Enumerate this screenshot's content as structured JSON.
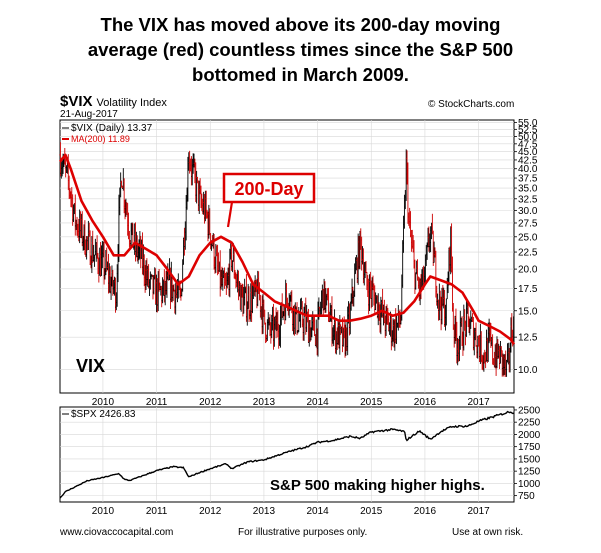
{
  "headline_lines": [
    "The VIX has moved above its 200-day moving",
    "average (red) countless times since the S&P 500",
    "bottomed in March 2009."
  ],
  "symbol": "$VIX",
  "symbol_desc": "Volatility Index",
  "credit": "© StockCharts.com",
  "chart_date": "21-Aug-2017",
  "colors": {
    "price": "#000000",
    "ma": "#dd0000",
    "down_bar": "#cc0000",
    "grid": "#d8d8d8",
    "callout": "#dd0000"
  },
  "chart_data": [
    {
      "type": "line",
      "legend": [
        "$VIX (Daily) 13.37",
        "MA(200) 11.89"
      ],
      "annotations": [
        "200-Day",
        "VIX"
      ],
      "x_tick_labels": [
        "2010",
        "2011",
        "2012",
        "2013",
        "2014",
        "2015",
        "2016",
        "2017"
      ],
      "y_tick_labels": [
        "10.0",
        "12.5",
        "15.0",
        "17.5",
        "20.0",
        "22.5",
        "25.0",
        "27.5",
        "30.0",
        "32.5",
        "35.0",
        "37.5",
        "40.0",
        "42.5",
        "45.0",
        "47.5",
        "50.0",
        "52.5",
        "55.0"
      ],
      "y_scale": "log",
      "ylim": [
        8.5,
        56
      ],
      "xlim": [
        2009.2,
        2017.66
      ],
      "grid": true,
      "series": [
        {
          "name": "$VIX (Daily)",
          "x": [
            2009.2,
            2009.28,
            2009.38,
            2009.48,
            2009.58,
            2009.7,
            2009.85,
            2009.95,
            2010.05,
            2010.15,
            2010.25,
            2010.35,
            2010.4,
            2010.5,
            2010.6,
            2010.7,
            2010.85,
            2011.0,
            2011.15,
            2011.25,
            2011.35,
            2011.45,
            2011.55,
            2011.6,
            2011.65,
            2011.75,
            2011.82,
            2011.9,
            2012.0,
            2012.1,
            2012.2,
            2012.3,
            2012.4,
            2012.5,
            2012.6,
            2012.75,
            2012.9,
            2013.0,
            2013.1,
            2013.2,
            2013.3,
            2013.45,
            2013.6,
            2013.75,
            2013.9,
            2014.0,
            2014.1,
            2014.2,
            2014.3,
            2014.5,
            2014.6,
            2014.8,
            2014.9,
            2015.0,
            2015.1,
            2015.25,
            2015.4,
            2015.55,
            2015.62,
            2015.65,
            2015.7,
            2015.8,
            2015.9,
            2016.0,
            2016.1,
            2016.25,
            2016.4,
            2016.48,
            2016.52,
            2016.6,
            2016.8,
            2016.9,
            2017.0,
            2017.1,
            2017.2,
            2017.28,
            2017.4,
            2017.5,
            2017.55,
            2017.62
          ],
          "values": [
            44,
            40,
            35,
            28,
            26,
            24,
            22,
            21,
            20,
            18,
            17,
            40,
            33,
            26,
            23,
            22,
            18,
            17,
            17,
            18,
            17,
            16,
            31,
            45,
            40,
            35,
            31,
            30,
            26,
            21,
            18,
            17,
            22,
            18,
            16,
            16,
            17,
            14,
            13,
            13,
            14,
            17,
            14,
            14,
            13,
            13,
            17,
            15,
            13,
            12,
            14,
            24,
            18,
            17,
            16,
            14,
            13,
            14,
            29,
            41,
            27,
            20,
            17,
            19,
            26,
            16,
            15,
            25,
            14,
            12,
            14,
            13,
            12,
            11,
            12,
            11,
            11,
            10,
            10,
            13.4
          ]
        },
        {
          "name": "MA(200)",
          "x": [
            2009.2,
            2009.3,
            2009.4,
            2009.6,
            2009.8,
            2010.0,
            2010.2,
            2010.4,
            2010.6,
            2010.8,
            2011.0,
            2011.2,
            2011.4,
            2011.6,
            2011.8,
            2012.0,
            2012.2,
            2012.4,
            2012.6,
            2012.8,
            2013.0,
            2013.2,
            2013.4,
            2013.6,
            2013.8,
            2014.0,
            2014.2,
            2014.4,
            2014.6,
            2014.8,
            2015.0,
            2015.2,
            2015.4,
            2015.6,
            2015.8,
            2016.0,
            2016.1,
            2016.3,
            2016.5,
            2016.7,
            2016.9,
            2017.0,
            2017.2,
            2017.4,
            2017.6,
            2017.66
          ],
          "values": [
            42,
            44,
            40,
            32,
            28,
            25,
            22,
            22,
            24,
            23,
            22,
            20,
            18,
            19,
            22,
            24,
            25,
            24,
            21,
            18,
            17,
            16,
            15.5,
            15,
            14.5,
            14.5,
            14.5,
            14,
            14,
            14.2,
            14.5,
            15,
            14.5,
            14.8,
            16,
            18,
            19,
            18.5,
            18,
            17,
            15,
            14,
            13.5,
            13,
            12.3,
            11.9
          ]
        }
      ]
    },
    {
      "type": "line",
      "legend": [
        "$SPX 2426.83"
      ],
      "annotations": [
        "S&P 500 making higher highs."
      ],
      "x_tick_labels": [
        "2010",
        "2011",
        "2012",
        "2013",
        "2014",
        "2015",
        "2016",
        "2017"
      ],
      "y_tick_labels": [
        "750",
        "1000",
        "1250",
        "1500",
        "1750",
        "2000",
        "2250",
        "2500"
      ],
      "ylim": [
        620,
        2560
      ],
      "xlim": [
        2009.2,
        2017.66
      ],
      "grid": true,
      "series": [
        {
          "name": "$SPX",
          "x": [
            2009.2,
            2009.3,
            2009.5,
            2009.7,
            2010.0,
            2010.3,
            2010.4,
            2010.5,
            2010.7,
            2011.0,
            2011.3,
            2011.5,
            2011.6,
            2011.75,
            2012.0,
            2012.3,
            2012.4,
            2012.7,
            2013.0,
            2013.3,
            2013.5,
            2013.8,
            2014.0,
            2014.3,
            2014.6,
            2014.8,
            2015.0,
            2015.4,
            2015.62,
            2015.65,
            2015.9,
            2016.1,
            2016.3,
            2016.5,
            2016.8,
            2017.0,
            2017.3,
            2017.6,
            2017.66
          ],
          "values": [
            700,
            830,
            940,
            1050,
            1120,
            1200,
            1080,
            1060,
            1140,
            1260,
            1340,
            1320,
            1130,
            1200,
            1300,
            1400,
            1300,
            1440,
            1480,
            1590,
            1660,
            1750,
            1840,
            1880,
            1960,
            1920,
            2050,
            2100,
            2060,
            1880,
            2070,
            1900,
            2060,
            2160,
            2170,
            2270,
            2370,
            2470,
            2427
          ]
        }
      ]
    }
  ],
  "footer": {
    "left": "www.ciovaccocapital.com",
    "mid": "For illustrative purposes only.",
    "right": "Use at own risk."
  }
}
